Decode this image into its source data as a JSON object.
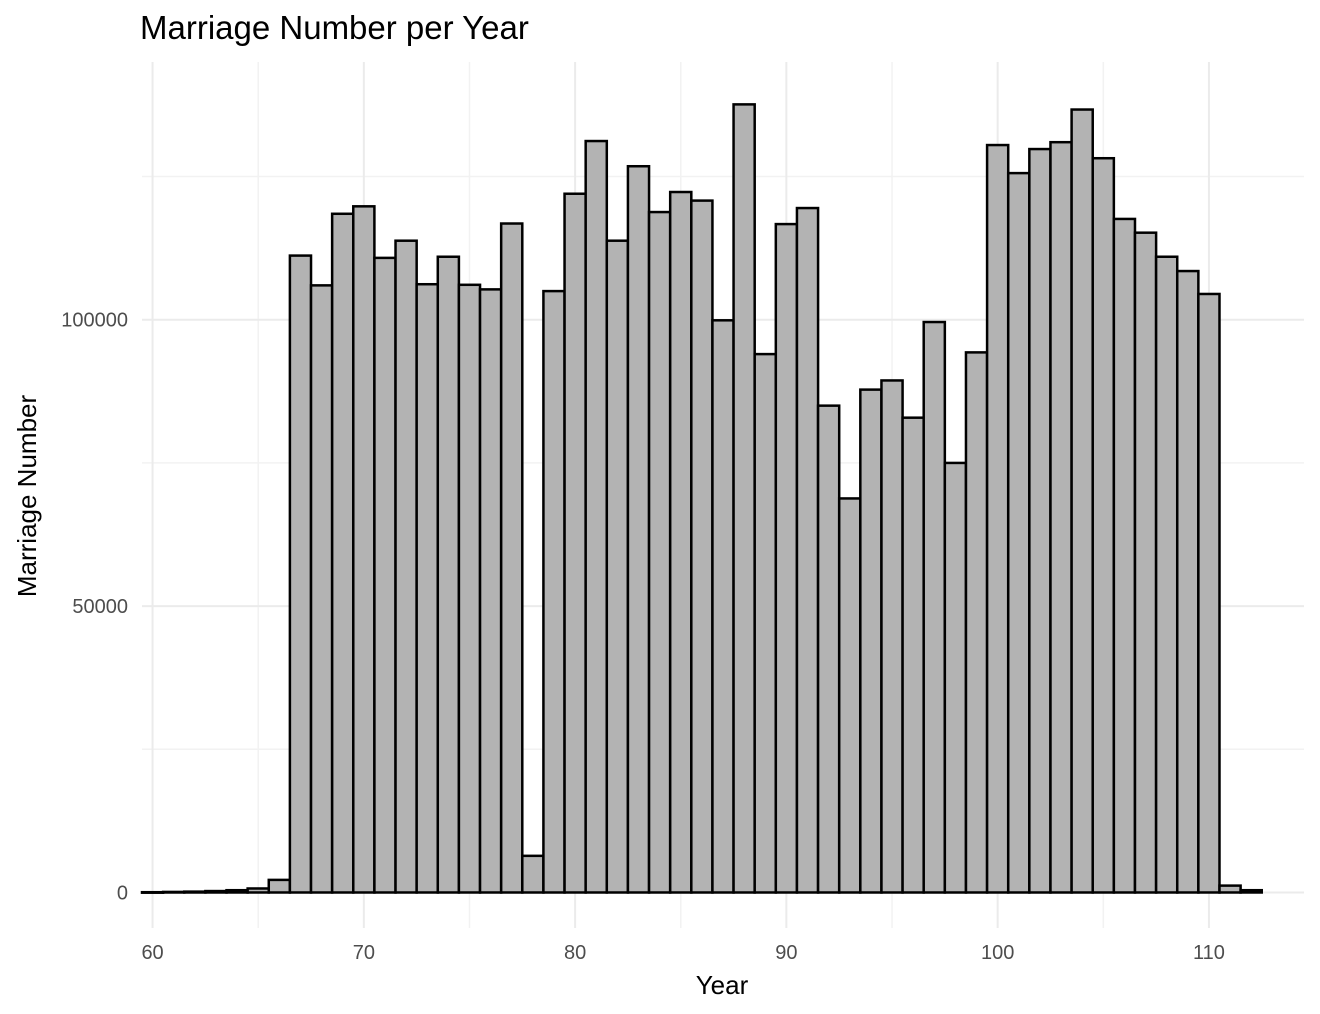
{
  "chart_data": {
    "type": "bar",
    "title": "Marriage Number per Year",
    "xlabel": "Year",
    "ylabel": "Marriage Number",
    "x_ticks": [
      60,
      70,
      80,
      90,
      100,
      110
    ],
    "y_ticks": [
      0,
      50000,
      100000
    ],
    "xlim": [
      59.5,
      114.5
    ],
    "ylim": [
      -6200,
      145000
    ],
    "grid": true,
    "legend": "none",
    "bar_fill": "#b3b3b3",
    "bar_edge": "#000000",
    "x": [
      60,
      61,
      62,
      63,
      64,
      65,
      66,
      67,
      68,
      69,
      70,
      71,
      72,
      73,
      74,
      75,
      76,
      77,
      78,
      79,
      80,
      81,
      82,
      83,
      84,
      85,
      86,
      87,
      88,
      89,
      90,
      91,
      92,
      93,
      94,
      95,
      96,
      97,
      98,
      99,
      100,
      101,
      102,
      103,
      104,
      105,
      106,
      107,
      108,
      109,
      110,
      111,
      112
    ],
    "values": [
      50,
      100,
      150,
      250,
      400,
      700,
      2200,
      111200,
      106000,
      118500,
      119800,
      110800,
      113800,
      106200,
      111000,
      106100,
      105300,
      116800,
      6400,
      105000,
      122000,
      131200,
      113800,
      126800,
      118800,
      122300,
      120800,
      99900,
      137600,
      94000,
      116700,
      119500,
      85000,
      68800,
      87800,
      89400,
      82900,
      99600,
      75000,
      94300,
      130500,
      125600,
      129800,
      131000,
      136700,
      128200,
      117600,
      115200,
      111000,
      108500,
      104500,
      1200,
      400
    ]
  }
}
